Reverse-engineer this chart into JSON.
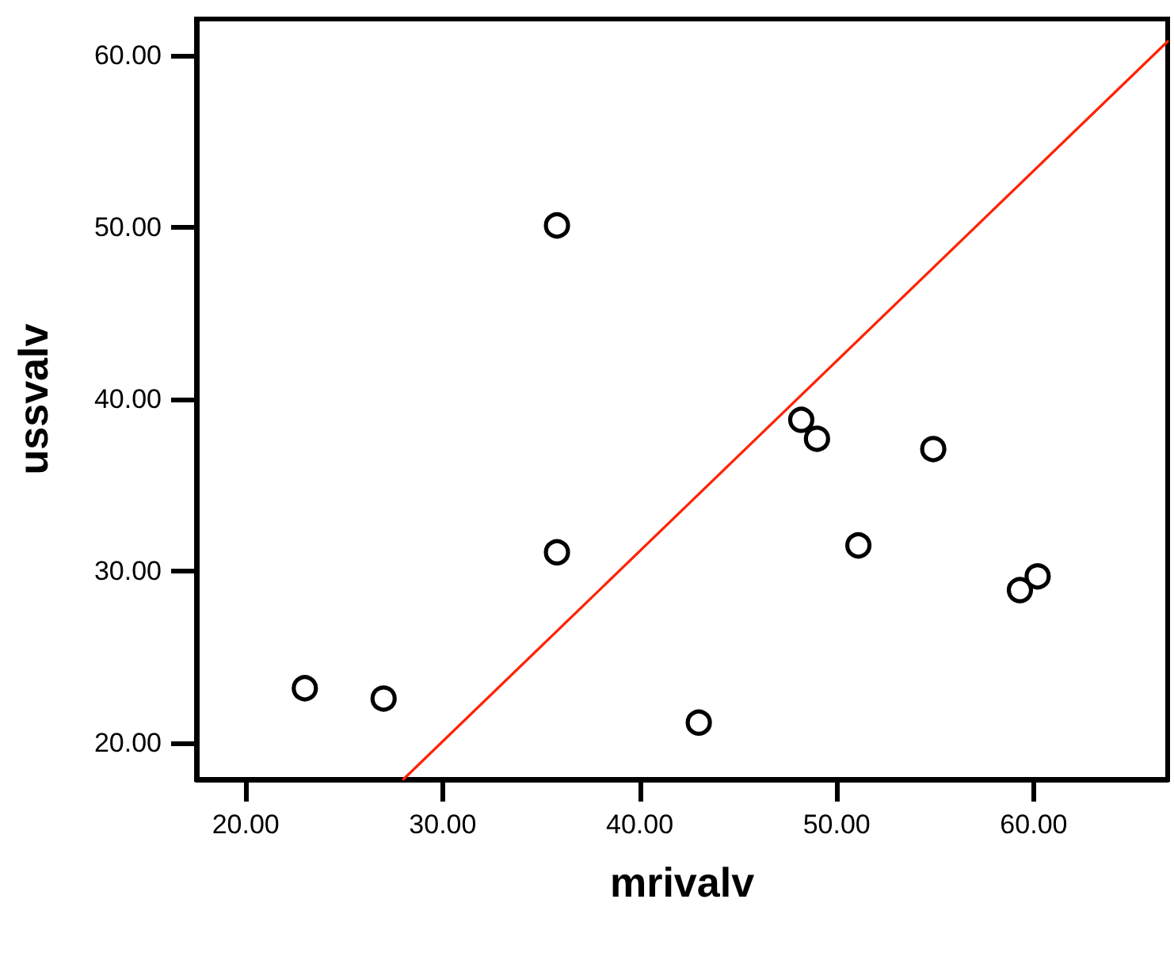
{
  "chart_data": {
    "type": "scatter",
    "xlabel": "mrivalv",
    "ylabel": "ussvalv",
    "xlim": [
      17.5,
      66.8
    ],
    "ylim": [
      17.9,
      62.1
    ],
    "xticks": [
      {
        "value": 20,
        "label": "20.00"
      },
      {
        "value": 30,
        "label": "30.00"
      },
      {
        "value": 40,
        "label": "40.00"
      },
      {
        "value": 50,
        "label": "50.00"
      },
      {
        "value": 60,
        "label": "60.00"
      }
    ],
    "yticks": [
      {
        "value": 20,
        "label": "20.00"
      },
      {
        "value": 30,
        "label": "30.00"
      },
      {
        "value": 40,
        "label": "40.00"
      },
      {
        "value": 50,
        "label": "50.00"
      },
      {
        "value": 60,
        "label": "60.00"
      }
    ],
    "grid": false,
    "marker": "circle",
    "series": [
      {
        "color": "#000000",
        "x": [
          23.0,
          27.0,
          35.8,
          35.8,
          43.0,
          48.2,
          49.0,
          51.1,
          54.9,
          59.3,
          60.2
        ],
        "values": [
          23.2,
          22.6,
          50.1,
          31.1,
          21.2,
          38.8,
          37.7,
          31.5,
          37.1,
          28.9,
          29.7
        ]
      },
      {
        "type": "line",
        "color": "#ff2200",
        "marker": "none",
        "line_style": "solid",
        "x": [
          28.0,
          66.8
        ],
        "values": [
          17.9,
          60.8
        ]
      }
    ]
  }
}
